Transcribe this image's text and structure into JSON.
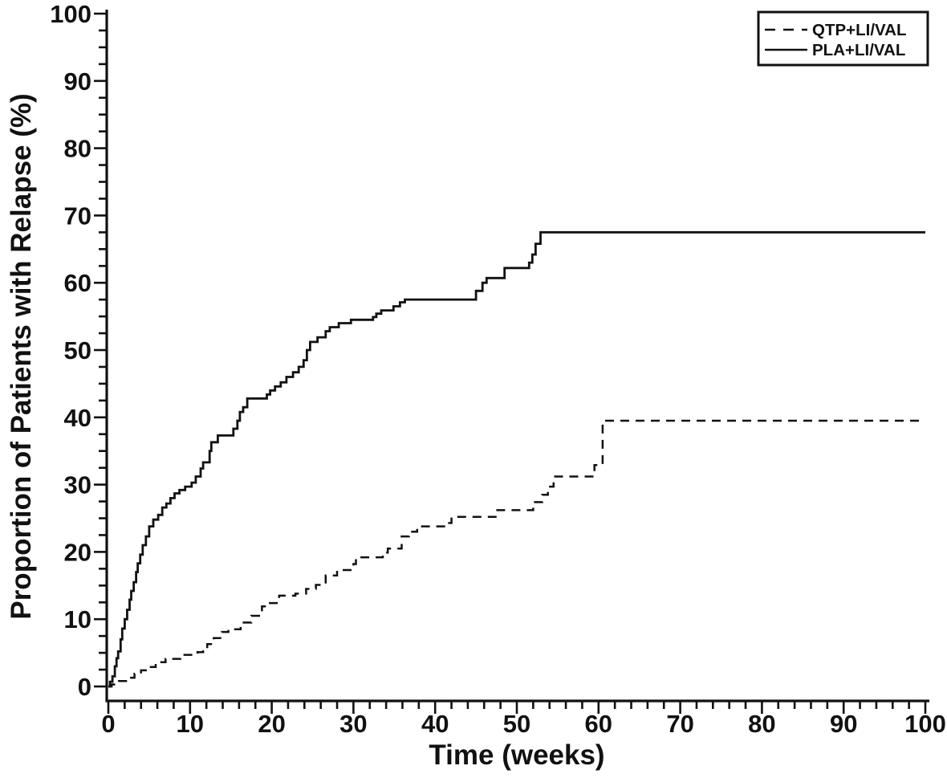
{
  "chart_data": {
    "type": "line",
    "line_mode": "step-after",
    "title": "",
    "xlabel": "Time (weeks)",
    "ylabel": "Proportion of Patients with Relapse (%)",
    "xlim": [
      0,
      100
    ],
    "ylim": [
      0,
      100
    ],
    "x_tick_labels": [
      "0",
      "10",
      "20",
      "30",
      "40",
      "50",
      "60",
      "70",
      "80",
      "90",
      "100"
    ],
    "y_tick_labels": [
      "0",
      "10",
      "20",
      "30",
      "40",
      "50",
      "60",
      "70",
      "80",
      "90",
      "100"
    ],
    "x_minor_tick_step": 2,
    "y_minor_tick_step": 2.5,
    "grid": "off",
    "background": "#ffffff",
    "ink_color": "#111111",
    "legend": {
      "position": "top-right",
      "entries": [
        "QTP+LI/VAL",
        "PLA+LI/VAL"
      ]
    },
    "series": [
      {
        "name": "QTP+LI/VAL",
        "line_style": "dashed",
        "color": "#111111",
        "points": [
          [
            0,
            0
          ],
          [
            0.4,
            0.3
          ],
          [
            1.3,
            0.8
          ],
          [
            2.3,
            1.3
          ],
          [
            3.2,
            1.9
          ],
          [
            4,
            2.4
          ],
          [
            4.8,
            2.9
          ],
          [
            5.8,
            3.6
          ],
          [
            7,
            4.1
          ],
          [
            8.8,
            4.7
          ],
          [
            10.9,
            5.1
          ],
          [
            11.6,
            5.7
          ],
          [
            12.1,
            6.3
          ],
          [
            12.9,
            7.2
          ],
          [
            13.9,
            8.1
          ],
          [
            14.7,
            8.5
          ],
          [
            16.2,
            9.5
          ],
          [
            17.5,
            10.5
          ],
          [
            18.8,
            11.9
          ],
          [
            19.6,
            12.4
          ],
          [
            20.9,
            13.5
          ],
          [
            22.9,
            13.8
          ],
          [
            24.2,
            14.5
          ],
          [
            25.4,
            15.1
          ],
          [
            26.6,
            16.5
          ],
          [
            28,
            17.3
          ],
          [
            30,
            18.2
          ],
          [
            30.3,
            19.2
          ],
          [
            33.6,
            19.9
          ],
          [
            34.2,
            20.5
          ],
          [
            35.9,
            22.3
          ],
          [
            36.8,
            23
          ],
          [
            37.8,
            23.8
          ],
          [
            41.1,
            24.3
          ],
          [
            42,
            25.2
          ],
          [
            47.4,
            26.2
          ],
          [
            52,
            27.4
          ],
          [
            53.1,
            28.5
          ],
          [
            53.8,
            29.7
          ],
          [
            54.5,
            31.2
          ],
          [
            59.5,
            32.9
          ],
          [
            60.5,
            39.5
          ]
        ]
      },
      {
        "name": "PLA+LI/VAL",
        "line_style": "solid",
        "color": "#111111",
        "points": [
          [
            0,
            0
          ],
          [
            0.2,
            0.7
          ],
          [
            0.5,
            1.5
          ],
          [
            0.8,
            3
          ],
          [
            1,
            4.2
          ],
          [
            1.2,
            5.2
          ],
          [
            1.5,
            7
          ],
          [
            1.7,
            8.6
          ],
          [
            2,
            10
          ],
          [
            2.3,
            11.4
          ],
          [
            2.6,
            12.9
          ],
          [
            2.8,
            14.2
          ],
          [
            3.1,
            15.5
          ],
          [
            3.4,
            17
          ],
          [
            3.6,
            18.3
          ],
          [
            3.9,
            19.6
          ],
          [
            4.2,
            21
          ],
          [
            4.6,
            22.3
          ],
          [
            5,
            23.8
          ],
          [
            5.5,
            24.8
          ],
          [
            6.1,
            25.5
          ],
          [
            6.6,
            26.6
          ],
          [
            7.1,
            27.2
          ],
          [
            7.6,
            28
          ],
          [
            8.1,
            28.7
          ],
          [
            8.7,
            29.2
          ],
          [
            9.4,
            29.7
          ],
          [
            10.2,
            30.3
          ],
          [
            10.7,
            31.2
          ],
          [
            11.3,
            32.4
          ],
          [
            11.6,
            33.3
          ],
          [
            12.4,
            35
          ],
          [
            12.6,
            36.3
          ],
          [
            13.4,
            37.3
          ],
          [
            15.3,
            38.3
          ],
          [
            15.8,
            39.5
          ],
          [
            16.1,
            40.8
          ],
          [
            16.5,
            41.5
          ],
          [
            17,
            42.8
          ],
          [
            19.4,
            43.4
          ],
          [
            19.8,
            44
          ],
          [
            20.4,
            44.6
          ],
          [
            21.1,
            45.2
          ],
          [
            21.8,
            46
          ],
          [
            22.6,
            46.7
          ],
          [
            23.3,
            47.5
          ],
          [
            23.9,
            48.5
          ],
          [
            24.3,
            50
          ],
          [
            24.7,
            51.2
          ],
          [
            25.6,
            51.9
          ],
          [
            26.6,
            52.8
          ],
          [
            27.1,
            53.4
          ],
          [
            28.2,
            54
          ],
          [
            29.7,
            54.5
          ],
          [
            32.4,
            54.9
          ],
          [
            32.8,
            55.4
          ],
          [
            33.4,
            55.9
          ],
          [
            34.9,
            56.5
          ],
          [
            35.7,
            57.1
          ],
          [
            36.3,
            57.5
          ],
          [
            45,
            58.8
          ],
          [
            45.8,
            60
          ],
          [
            46.3,
            60.7
          ],
          [
            48.5,
            62.2
          ],
          [
            51.5,
            63
          ],
          [
            51.9,
            64.2
          ],
          [
            52.3,
            65.8
          ],
          [
            52.9,
            67.5
          ]
        ]
      }
    ]
  }
}
